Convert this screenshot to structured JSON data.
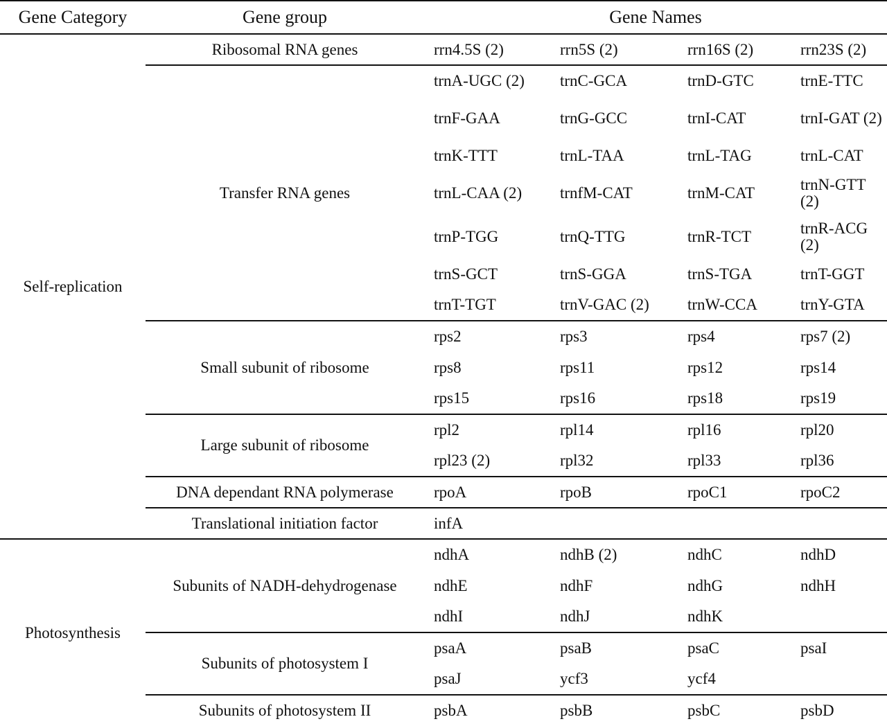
{
  "header": {
    "col_category": "Gene Category",
    "col_group": "Gene group",
    "col_names": "Gene Names"
  },
  "categories": [
    {
      "name": "Self-replication",
      "groups": [
        {
          "name": "Ribosomal RNA genes",
          "rows": [
            [
              "rrn4.5S (2)",
              "rrn5S (2)",
              "rrn16S (2)",
              "rrn23S (2)"
            ]
          ]
        },
        {
          "name": "Transfer RNA genes",
          "rows": [
            [
              "trnA-UGC (2)",
              "trnC-GCA",
              "trnD-GTC",
              "trnE-TTC"
            ],
            [
              "trnF-GAA",
              "trnG-GCC",
              "trnI-CAT",
              "trnI-GAT (2)"
            ],
            [
              "trnK-TTT",
              "trnL-TAA",
              "trnL-TAG",
              "trnL-CAT"
            ],
            [
              "trnL-CAA (2)",
              "trnfM-CAT",
              "trnM-CAT",
              "trnN-GTT (2)"
            ],
            [
              "trnP-TGG",
              "trnQ-TTG",
              "trnR-TCT",
              "trnR-ACG (2)"
            ],
            [
              "trnS-GCT",
              "trnS-GGA",
              "trnS-TGA",
              "trnT-GGT"
            ],
            [
              "trnT-TGT",
              "trnV-GAC (2)",
              "trnW-CCA",
              "trnY-GTA"
            ]
          ]
        },
        {
          "name": "Small subunit of ribosome",
          "rows": [
            [
              "rps2",
              "rps3",
              "rps4",
              "rps7 (2)"
            ],
            [
              "rps8",
              "rps11",
              "rps12",
              "rps14"
            ],
            [
              "rps15",
              "rps16",
              "rps18",
              "rps19"
            ]
          ]
        },
        {
          "name": "Large subunit of ribosome",
          "rows": [
            [
              "rpl2",
              "rpl14",
              "rpl16",
              "rpl20"
            ],
            [
              "rpl23 (2)",
              "rpl32",
              "rpl33",
              "rpl36"
            ]
          ]
        },
        {
          "name": "DNA dependant RNA polymerase",
          "rows": [
            [
              "rpoA",
              "rpoB",
              "rpoC1",
              "rpoC2"
            ]
          ]
        },
        {
          "name": "Translational initiation factor",
          "rows": [
            [
              "infA",
              "",
              "",
              ""
            ]
          ]
        }
      ]
    },
    {
      "name": "Photosynthesis",
      "groups": [
        {
          "name": "Subunits of NADH-dehydrogenase",
          "rows": [
            [
              "ndhA",
              "ndhB (2)",
              "ndhC",
              "ndhD"
            ],
            [
              "ndhE",
              "ndhF",
              "ndhG",
              "ndhH"
            ],
            [
              "ndhI",
              "ndhJ",
              "ndhK",
              ""
            ]
          ]
        },
        {
          "name": "Subunits of photosystem I",
          "rows": [
            [
              "psaA",
              "psaB",
              "psaC",
              "psaI"
            ],
            [
              "psaJ",
              "ycf3",
              "ycf4",
              ""
            ]
          ]
        },
        {
          "name": "Subunits of photosystem II",
          "rows": [
            [
              "psbA",
              "psbB",
              "psbC",
              "psbD"
            ]
          ]
        }
      ]
    }
  ]
}
